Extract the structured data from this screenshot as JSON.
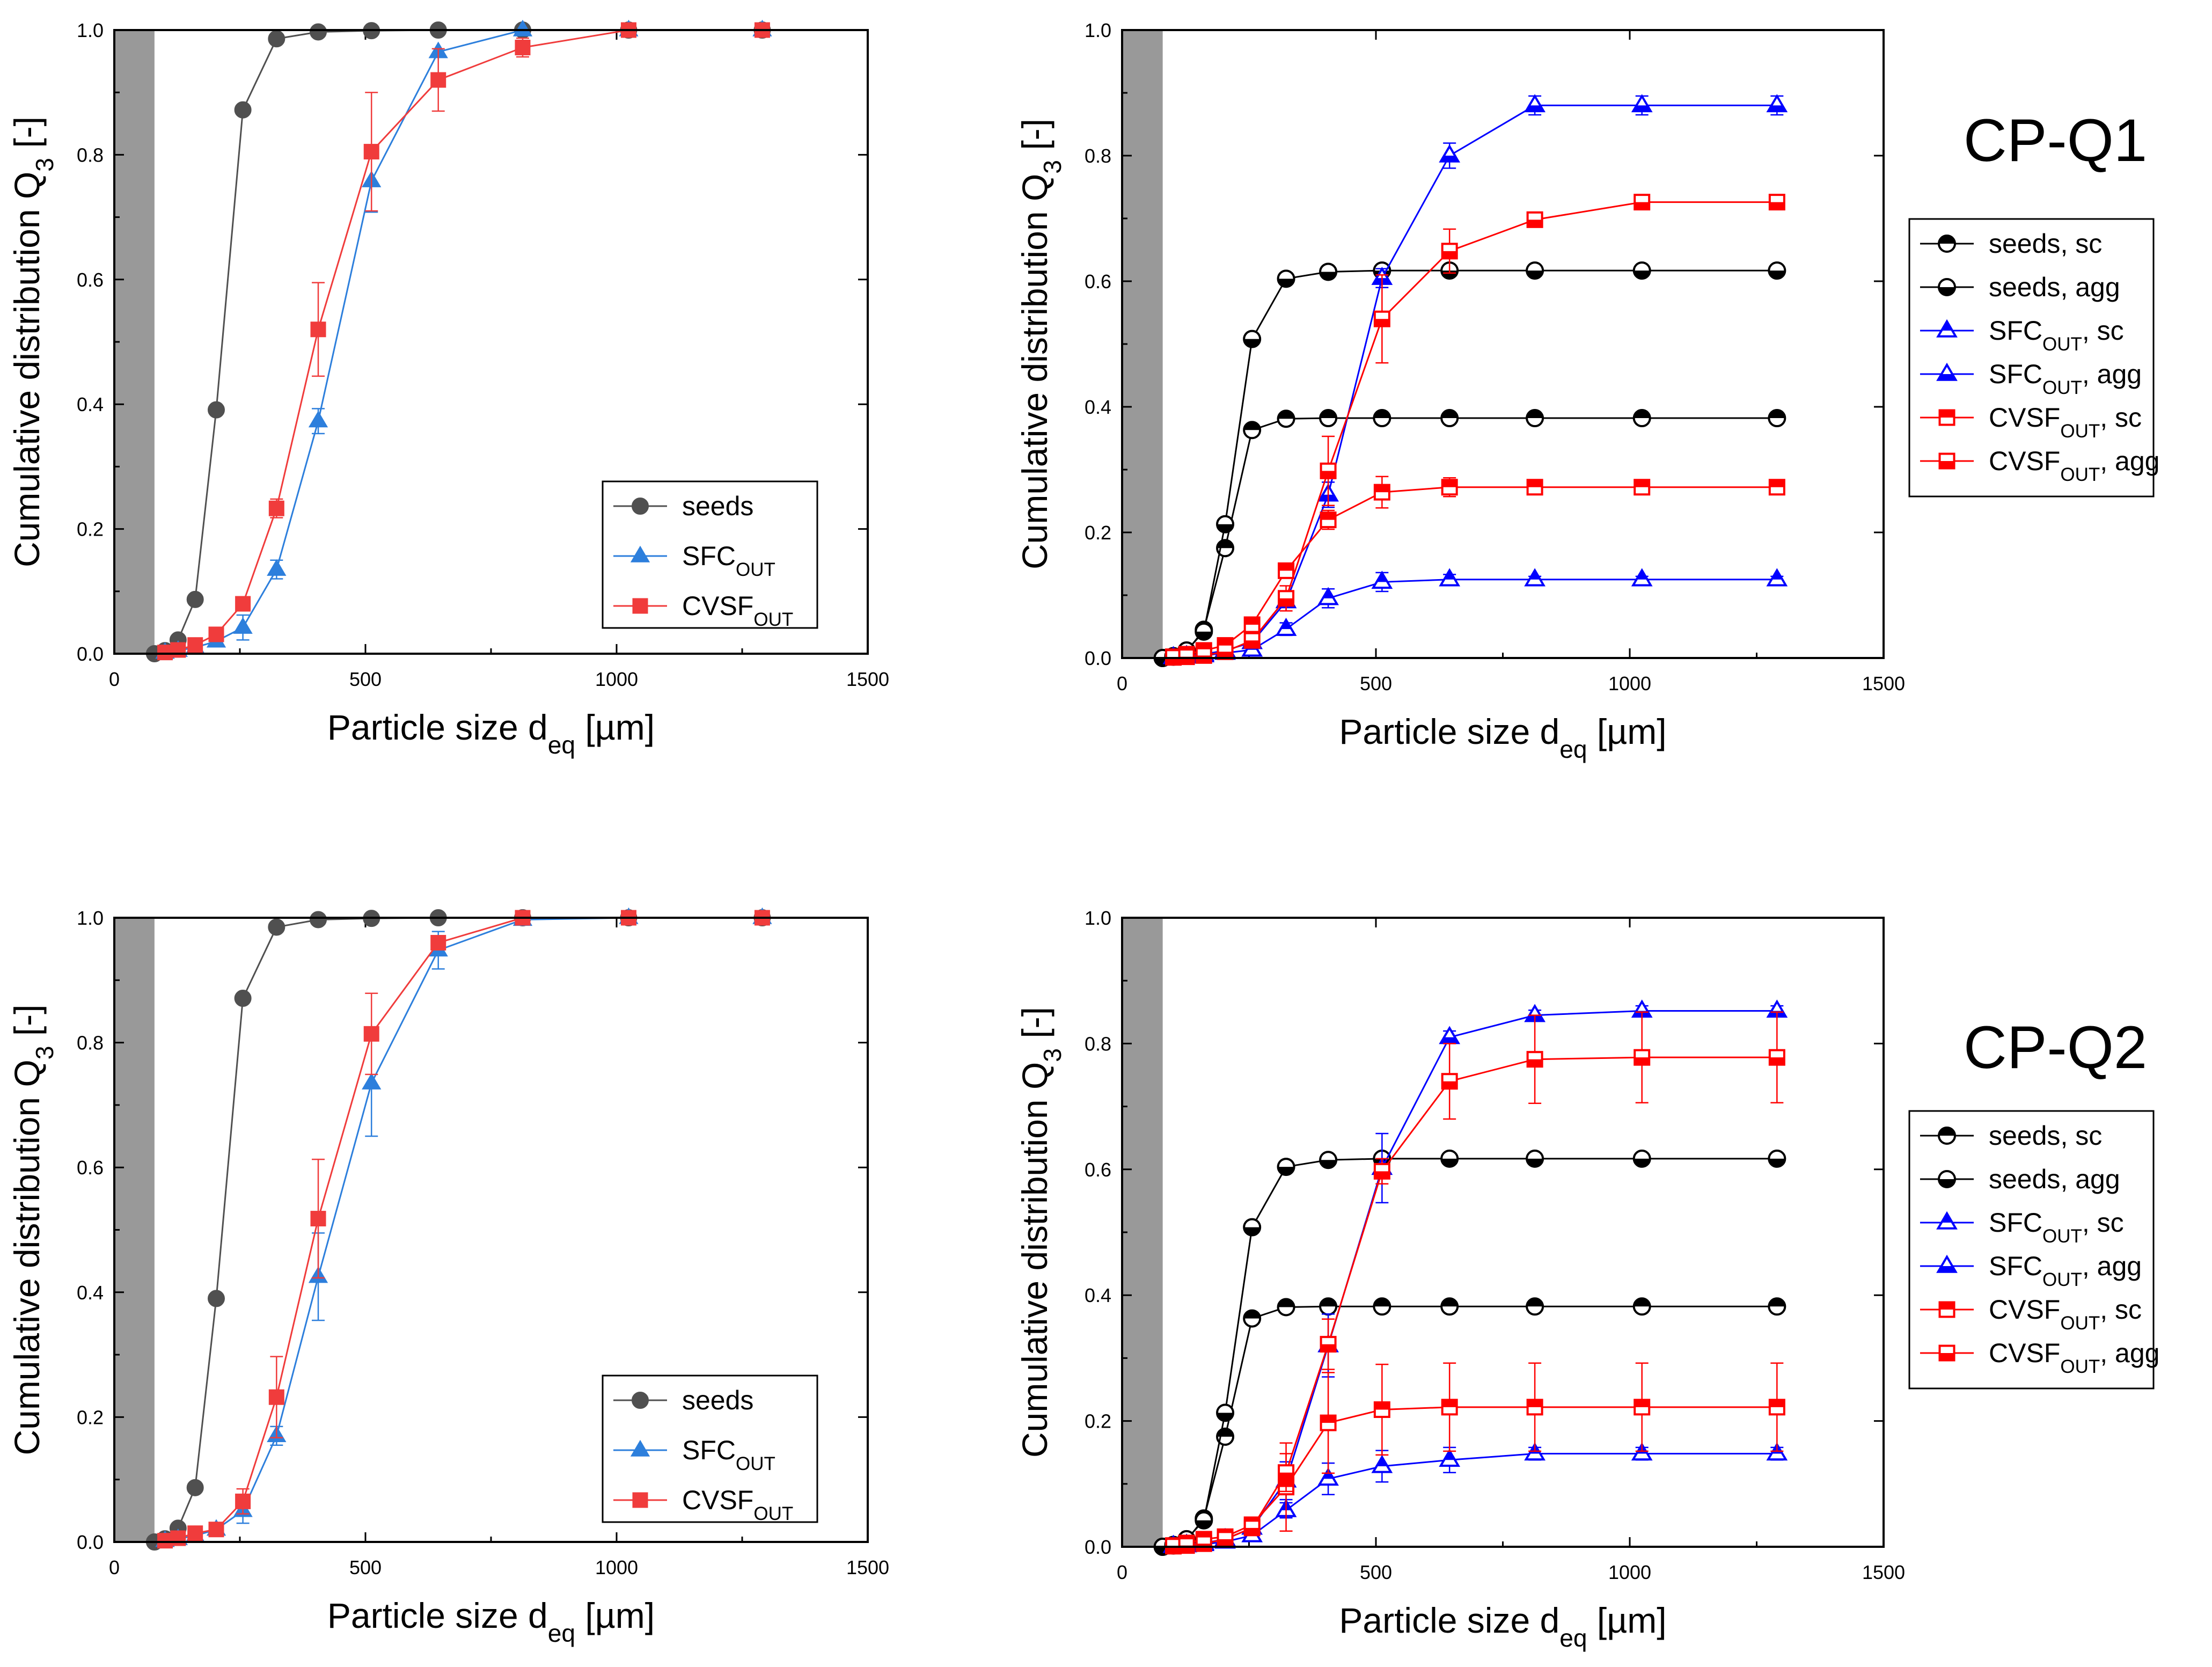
{
  "figure": {
    "colors": {
      "seeds": "#505050",
      "SFC": "#2d7fdc",
      "CVSF": "#f03c3c",
      "black": "#000000",
      "blue": "#0000ff",
      "red": "#ff0000",
      "shade": "#999999"
    },
    "shaded_region_xmax": 80
  },
  "chart_data": [
    {
      "id": "a",
      "type": "line",
      "title": "",
      "xlabel": "Particle size d",
      "xlabel_sub": "eq",
      "xlabel_unit": " [µm]",
      "ylabel": "Cumulative distribution Q",
      "ylabel_sub": "3",
      "ylabel_unit": " [-]",
      "xlim": [
        0,
        1500
      ],
      "ylim": [
        0,
        1.0
      ],
      "xticks": [
        "0",
        "500",
        "1000",
        "1500"
      ],
      "yticks": [
        "0.0",
        "0.2",
        "0.4",
        "0.6",
        "0.8",
        "1.0"
      ],
      "legend_position": "bottom-right",
      "series": [
        {
          "name": "seeds",
          "name_sub": "",
          "name_suffix": "",
          "color": "#505050",
          "marker": "circle",
          "fill": "solid",
          "x": [
            80,
            101,
            127,
            161,
            203,
            256,
            323,
            406,
            512,
            645,
            813,
            1024,
            1290
          ],
          "y": [
            0.0,
            0.005,
            0.022,
            0.087,
            0.391,
            0.872,
            0.986,
            0.997,
            0.999,
            1.0,
            1.0,
            1.0,
            1.0
          ],
          "err": [
            0,
            0,
            0,
            0,
            0,
            0,
            0,
            0,
            0,
            0,
            0,
            0,
            0
          ]
        },
        {
          "name": "SFC",
          "name_sub": "OUT",
          "name_suffix": "",
          "color": "#2d7fdc",
          "marker": "triangle",
          "fill": "solid",
          "x": [
            101,
            127,
            161,
            203,
            256,
            323,
            406,
            512,
            645,
            813,
            1024,
            1290
          ],
          "y": [
            0.002,
            0.005,
            0.01,
            0.02,
            0.042,
            0.135,
            0.373,
            0.758,
            0.965,
            1.0,
            1.0,
            1.0
          ],
          "err": [
            0,
            0,
            0.005,
            0.008,
            0.02,
            0.015,
            0.02,
            0.05,
            0,
            0,
            0,
            0
          ]
        },
        {
          "name": "CVSF",
          "name_sub": "OUT",
          "name_suffix": "",
          "color": "#f03c3c",
          "marker": "square",
          "fill": "solid",
          "x": [
            101,
            127,
            161,
            203,
            256,
            323,
            406,
            512,
            645,
            813,
            1024,
            1290
          ],
          "y": [
            0.002,
            0.006,
            0.014,
            0.031,
            0.08,
            0.233,
            0.52,
            0.805,
            0.92,
            0.972,
            1.0,
            1.0
          ],
          "err": [
            0,
            0,
            0.005,
            0.01,
            0.01,
            0.015,
            0.075,
            0.095,
            0.05,
            0.015,
            0,
            0
          ]
        }
      ]
    },
    {
      "id": "b",
      "type": "line",
      "title": "CP-Q1",
      "xlabel": "Particle size d",
      "xlabel_sub": "eq",
      "xlabel_unit": " [µm]",
      "ylabel": "Cumulative distribution Q",
      "ylabel_sub": "3",
      "ylabel_unit": " [-]",
      "xlim": [
        0,
        1500
      ],
      "ylim": [
        0,
        1.0
      ],
      "xticks": [
        "0",
        "500",
        "1000",
        "1500"
      ],
      "yticks": [
        "0.0",
        "0.2",
        "0.4",
        "0.6",
        "0.8",
        "1.0"
      ],
      "legend_position": "outside-right",
      "series": [
        {
          "name": "seeds",
          "name_sub": "",
          "name_suffix": ", sc",
          "color": "#000000",
          "marker": "circle",
          "fill": "top",
          "x": [
            80,
            101,
            127,
            161,
            203,
            256,
            323,
            406,
            512,
            645,
            813,
            1024,
            1290
          ],
          "y": [
            0.0,
            0.002,
            0.01,
            0.045,
            0.175,
            0.363,
            0.381,
            0.382,
            0.382,
            0.382,
            0.382,
            0.382,
            0.382
          ],
          "err": [
            0,
            0,
            0,
            0,
            0,
            0,
            0,
            0,
            0,
            0,
            0,
            0,
            0
          ]
        },
        {
          "name": "seeds",
          "name_sub": "",
          "name_suffix": ", agg",
          "color": "#000000",
          "marker": "circle",
          "fill": "bottom",
          "x": [
            80,
            101,
            127,
            161,
            203,
            256,
            323,
            406,
            512,
            645,
            813,
            1024,
            1290
          ],
          "y": [
            0.0,
            0.003,
            0.012,
            0.042,
            0.213,
            0.508,
            0.604,
            0.615,
            0.617,
            0.617,
            0.617,
            0.617,
            0.617
          ],
          "err": [
            0,
            0,
            0,
            0,
            0,
            0,
            0,
            0,
            0,
            0,
            0,
            0,
            0
          ]
        },
        {
          "name": "SFC",
          "name_sub": "OUT",
          "name_suffix": ", sc",
          "color": "#0000ff",
          "marker": "triangle",
          "fill": "top",
          "x": [
            101,
            127,
            161,
            203,
            256,
            323,
            406,
            512,
            645,
            813,
            1024,
            1290
          ],
          "y": [
            0.001,
            0.002,
            0.004,
            0.008,
            0.013,
            0.046,
            0.095,
            0.121,
            0.125,
            0.125,
            0.125,
            0.125
          ],
          "err": [
            0,
            0,
            0,
            0,
            0.005,
            0.01,
            0.015,
            0.015,
            0.008,
            0.005,
            0.005,
            0.005
          ]
        },
        {
          "name": "SFC",
          "name_sub": "OUT",
          "name_suffix": ", agg",
          "color": "#0000ff",
          "marker": "triangle",
          "fill": "bottom",
          "x": [
            101,
            127,
            161,
            203,
            256,
            323,
            406,
            512,
            645,
            813,
            1024,
            1290
          ],
          "y": [
            0.001,
            0.003,
            0.006,
            0.012,
            0.025,
            0.09,
            0.26,
            0.605,
            0.8,
            0.88,
            0.88,
            0.88
          ],
          "err": [
            0,
            0,
            0,
            0,
            0.008,
            0.015,
            0.02,
            0.015,
            0.02,
            0.015,
            0.015,
            0.015
          ]
        },
        {
          "name": "CVSF",
          "name_sub": "OUT",
          "name_suffix": ", sc",
          "color": "#ff0000",
          "marker": "square",
          "fill": "top",
          "x": [
            101,
            127,
            161,
            203,
            256,
            323,
            406,
            512,
            645,
            813,
            1024,
            1290
          ],
          "y": [
            0.002,
            0.006,
            0.012,
            0.02,
            0.053,
            0.139,
            0.22,
            0.264,
            0.272,
            0.272,
            0.272,
            0.272
          ],
          "err": [
            0,
            0,
            0,
            0,
            0.005,
            0.01,
            0.015,
            0.025,
            0.015,
            0.01,
            0.01,
            0.01
          ]
        },
        {
          "name": "CVSF",
          "name_sub": "OUT",
          "name_suffix": ", agg",
          "color": "#ff0000",
          "marker": "square",
          "fill": "bottom",
          "x": [
            101,
            127,
            161,
            203,
            256,
            323,
            406,
            512,
            645,
            813,
            1024,
            1290
          ],
          "y": [
            0.001,
            0.002,
            0.004,
            0.01,
            0.028,
            0.095,
            0.298,
            0.54,
            0.648,
            0.698,
            0.726,
            0.726
          ],
          "err": [
            0,
            0,
            0,
            0,
            0.01,
            0.02,
            0.055,
            0.07,
            0.035,
            0.01,
            0.012,
            0.012
          ]
        }
      ]
    },
    {
      "id": "c",
      "type": "line",
      "title": "",
      "xlabel": "Particle size d",
      "xlabel_sub": "eq",
      "xlabel_unit": " [µm]",
      "ylabel": "Cumulative distribution Q",
      "ylabel_sub": "3",
      "ylabel_unit": " [-]",
      "xlim": [
        0,
        1500
      ],
      "ylim": [
        0,
        1.0
      ],
      "xticks": [
        "0",
        "500",
        "1000",
        "1500"
      ],
      "yticks": [
        "0.0",
        "0.2",
        "0.4",
        "0.6",
        "0.8",
        "1.0"
      ],
      "legend_position": "bottom-right",
      "series": [
        {
          "name": "seeds",
          "name_sub": "",
          "name_suffix": "",
          "color": "#505050",
          "marker": "circle",
          "fill": "solid",
          "x": [
            80,
            101,
            127,
            161,
            203,
            256,
            323,
            406,
            512,
            645,
            813,
            1024,
            1290
          ],
          "y": [
            0.0,
            0.005,
            0.022,
            0.087,
            0.39,
            0.871,
            0.985,
            0.997,
            0.999,
            1.0,
            1.0,
            1.0,
            1.0
          ],
          "err": [
            0,
            0,
            0,
            0,
            0,
            0,
            0,
            0,
            0,
            0,
            0,
            0,
            0
          ]
        },
        {
          "name": "SFC",
          "name_sub": "OUT",
          "name_suffix": "",
          "color": "#2d7fdc",
          "marker": "triangle",
          "fill": "solid",
          "x": [
            101,
            127,
            161,
            203,
            256,
            323,
            406,
            512,
            645,
            813,
            1024,
            1290
          ],
          "y": [
            0.002,
            0.005,
            0.01,
            0.02,
            0.05,
            0.17,
            0.425,
            0.735,
            0.948,
            0.997,
            1.0,
            1.0
          ],
          "err": [
            0,
            0,
            0.005,
            0.008,
            0.02,
            0.015,
            0.07,
            0.085,
            0.03,
            0,
            0,
            0
          ]
        },
        {
          "name": "CVSF",
          "name_sub": "OUT",
          "name_suffix": "",
          "color": "#f03c3c",
          "marker": "square",
          "fill": "solid",
          "x": [
            101,
            127,
            161,
            203,
            256,
            323,
            406,
            512,
            645,
            813,
            1024,
            1290
          ],
          "y": [
            0.002,
            0.006,
            0.014,
            0.02,
            0.065,
            0.232,
            0.518,
            0.814,
            0.96,
            1.0,
            1.0,
            1.0
          ],
          "err": [
            0,
            0,
            0.005,
            0.008,
            0.02,
            0.065,
            0.095,
            0.065,
            0.01,
            0,
            0,
            0
          ]
        }
      ]
    },
    {
      "id": "d",
      "type": "line",
      "title": "CP-Q2",
      "xlabel": "Particle size d",
      "xlabel_sub": "eq",
      "xlabel_unit": " [µm]",
      "ylabel": "Cumulative distribution Q",
      "ylabel_sub": "3",
      "ylabel_unit": " [-]",
      "xlim": [
        0,
        1500
      ],
      "ylim": [
        0,
        1.0
      ],
      "xticks": [
        "0",
        "500",
        "1000",
        "1500"
      ],
      "yticks": [
        "0.0",
        "0.2",
        "0.4",
        "0.6",
        "0.8",
        "1.0"
      ],
      "legend_position": "outside-right",
      "series": [
        {
          "name": "seeds",
          "name_sub": "",
          "name_suffix": ", sc",
          "color": "#000000",
          "marker": "circle",
          "fill": "top",
          "x": [
            80,
            101,
            127,
            161,
            203,
            256,
            323,
            406,
            512,
            645,
            813,
            1024,
            1290
          ],
          "y": [
            0.0,
            0.002,
            0.01,
            0.045,
            0.175,
            0.363,
            0.381,
            0.382,
            0.382,
            0.382,
            0.382,
            0.382,
            0.382
          ],
          "err": [
            0,
            0,
            0,
            0,
            0,
            0,
            0,
            0,
            0,
            0,
            0,
            0,
            0
          ]
        },
        {
          "name": "seeds",
          "name_sub": "",
          "name_suffix": ", agg",
          "color": "#000000",
          "marker": "circle",
          "fill": "bottom",
          "x": [
            80,
            101,
            127,
            161,
            203,
            256,
            323,
            406,
            512,
            645,
            813,
            1024,
            1290
          ],
          "y": [
            0.0,
            0.003,
            0.012,
            0.042,
            0.213,
            0.508,
            0.604,
            0.615,
            0.617,
            0.617,
            0.617,
            0.617,
            0.617
          ],
          "err": [
            0,
            0,
            0,
            0,
            0,
            0,
            0,
            0,
            0,
            0,
            0,
            0,
            0
          ]
        },
        {
          "name": "SFC",
          "name_sub": "OUT",
          "name_suffix": ", sc",
          "color": "#0000ff",
          "marker": "triangle",
          "fill": "top",
          "x": [
            101,
            127,
            161,
            203,
            256,
            323,
            406,
            512,
            645,
            813,
            1024,
            1290
          ],
          "y": [
            0.001,
            0.002,
            0.004,
            0.008,
            0.018,
            0.058,
            0.108,
            0.128,
            0.138,
            0.148,
            0.148,
            0.148
          ],
          "err": [
            0,
            0,
            0,
            0,
            0.005,
            0.012,
            0.025,
            0.025,
            0.02,
            0.01,
            0.01,
            0.01
          ]
        },
        {
          "name": "SFC",
          "name_sub": "OUT",
          "name_suffix": ", agg",
          "color": "#0000ff",
          "marker": "triangle",
          "fill": "bottom",
          "x": [
            101,
            127,
            161,
            203,
            256,
            323,
            406,
            512,
            645,
            813,
            1024,
            1290
          ],
          "y": [
            0.001,
            0.003,
            0.006,
            0.012,
            0.03,
            0.105,
            0.32,
            0.602,
            0.81,
            0.845,
            0.852,
            0.852
          ],
          "err": [
            0,
            0,
            0,
            0,
            0.01,
            0.03,
            0.05,
            0.055,
            0.01,
            0.008,
            0.008,
            0.008
          ]
        },
        {
          "name": "CVSF",
          "name_sub": "OUT",
          "name_suffix": ", sc",
          "color": "#ff0000",
          "marker": "square",
          "fill": "top",
          "x": [
            101,
            127,
            161,
            203,
            256,
            323,
            406,
            512,
            645,
            813,
            1024,
            1290
          ],
          "y": [
            0.002,
            0.006,
            0.012,
            0.016,
            0.035,
            0.095,
            0.197,
            0.218,
            0.222,
            0.222,
            0.222,
            0.222
          ],
          "err": [
            0,
            0,
            0,
            0,
            0.01,
            0.07,
            0.08,
            0.072,
            0.07,
            0.07,
            0.07,
            0.07
          ]
        },
        {
          "name": "CVSF",
          "name_sub": "OUT",
          "name_suffix": ", agg",
          "color": "#ff0000",
          "marker": "square",
          "fill": "bottom",
          "x": [
            101,
            127,
            161,
            203,
            256,
            323,
            406,
            512,
            645,
            813,
            1024,
            1290
          ],
          "y": [
            0.001,
            0.002,
            0.005,
            0.012,
            0.03,
            0.118,
            0.322,
            0.597,
            0.74,
            0.775,
            0.778,
            0.778
          ],
          "err": [
            0,
            0,
            0,
            0,
            0.01,
            0.03,
            0.04,
            0.02,
            0.06,
            0.07,
            0.072,
            0.072
          ]
        }
      ]
    }
  ]
}
